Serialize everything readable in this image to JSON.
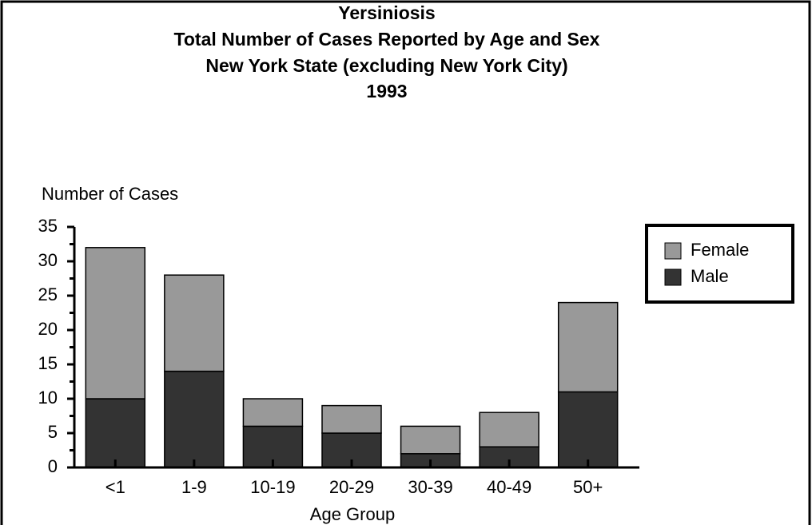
{
  "chart_data": {
    "type": "stacked_bar",
    "title": [
      "Yersiniosis",
      "Total Number of Cases Reported by Age and Sex",
      "New York State (excluding New York City)",
      "1993"
    ],
    "ylabel": "Number of Cases",
    "xlabel": "Age Group",
    "categories": [
      "<1",
      "1-9",
      "10-19",
      "20-29",
      "30-39",
      "40-49",
      "50+"
    ],
    "series": [
      {
        "name": "Male",
        "color": "#333333",
        "values": [
          10,
          14,
          6,
          5,
          2,
          3,
          11
        ]
      },
      {
        "name": "Female",
        "color": "#999999",
        "values": [
          22,
          14,
          4,
          4,
          4,
          5,
          13
        ]
      }
    ],
    "ylim": [
      0,
      35
    ],
    "yticks": [
      0,
      5,
      10,
      15,
      20,
      25,
      30,
      35
    ],
    "legend": "right"
  }
}
